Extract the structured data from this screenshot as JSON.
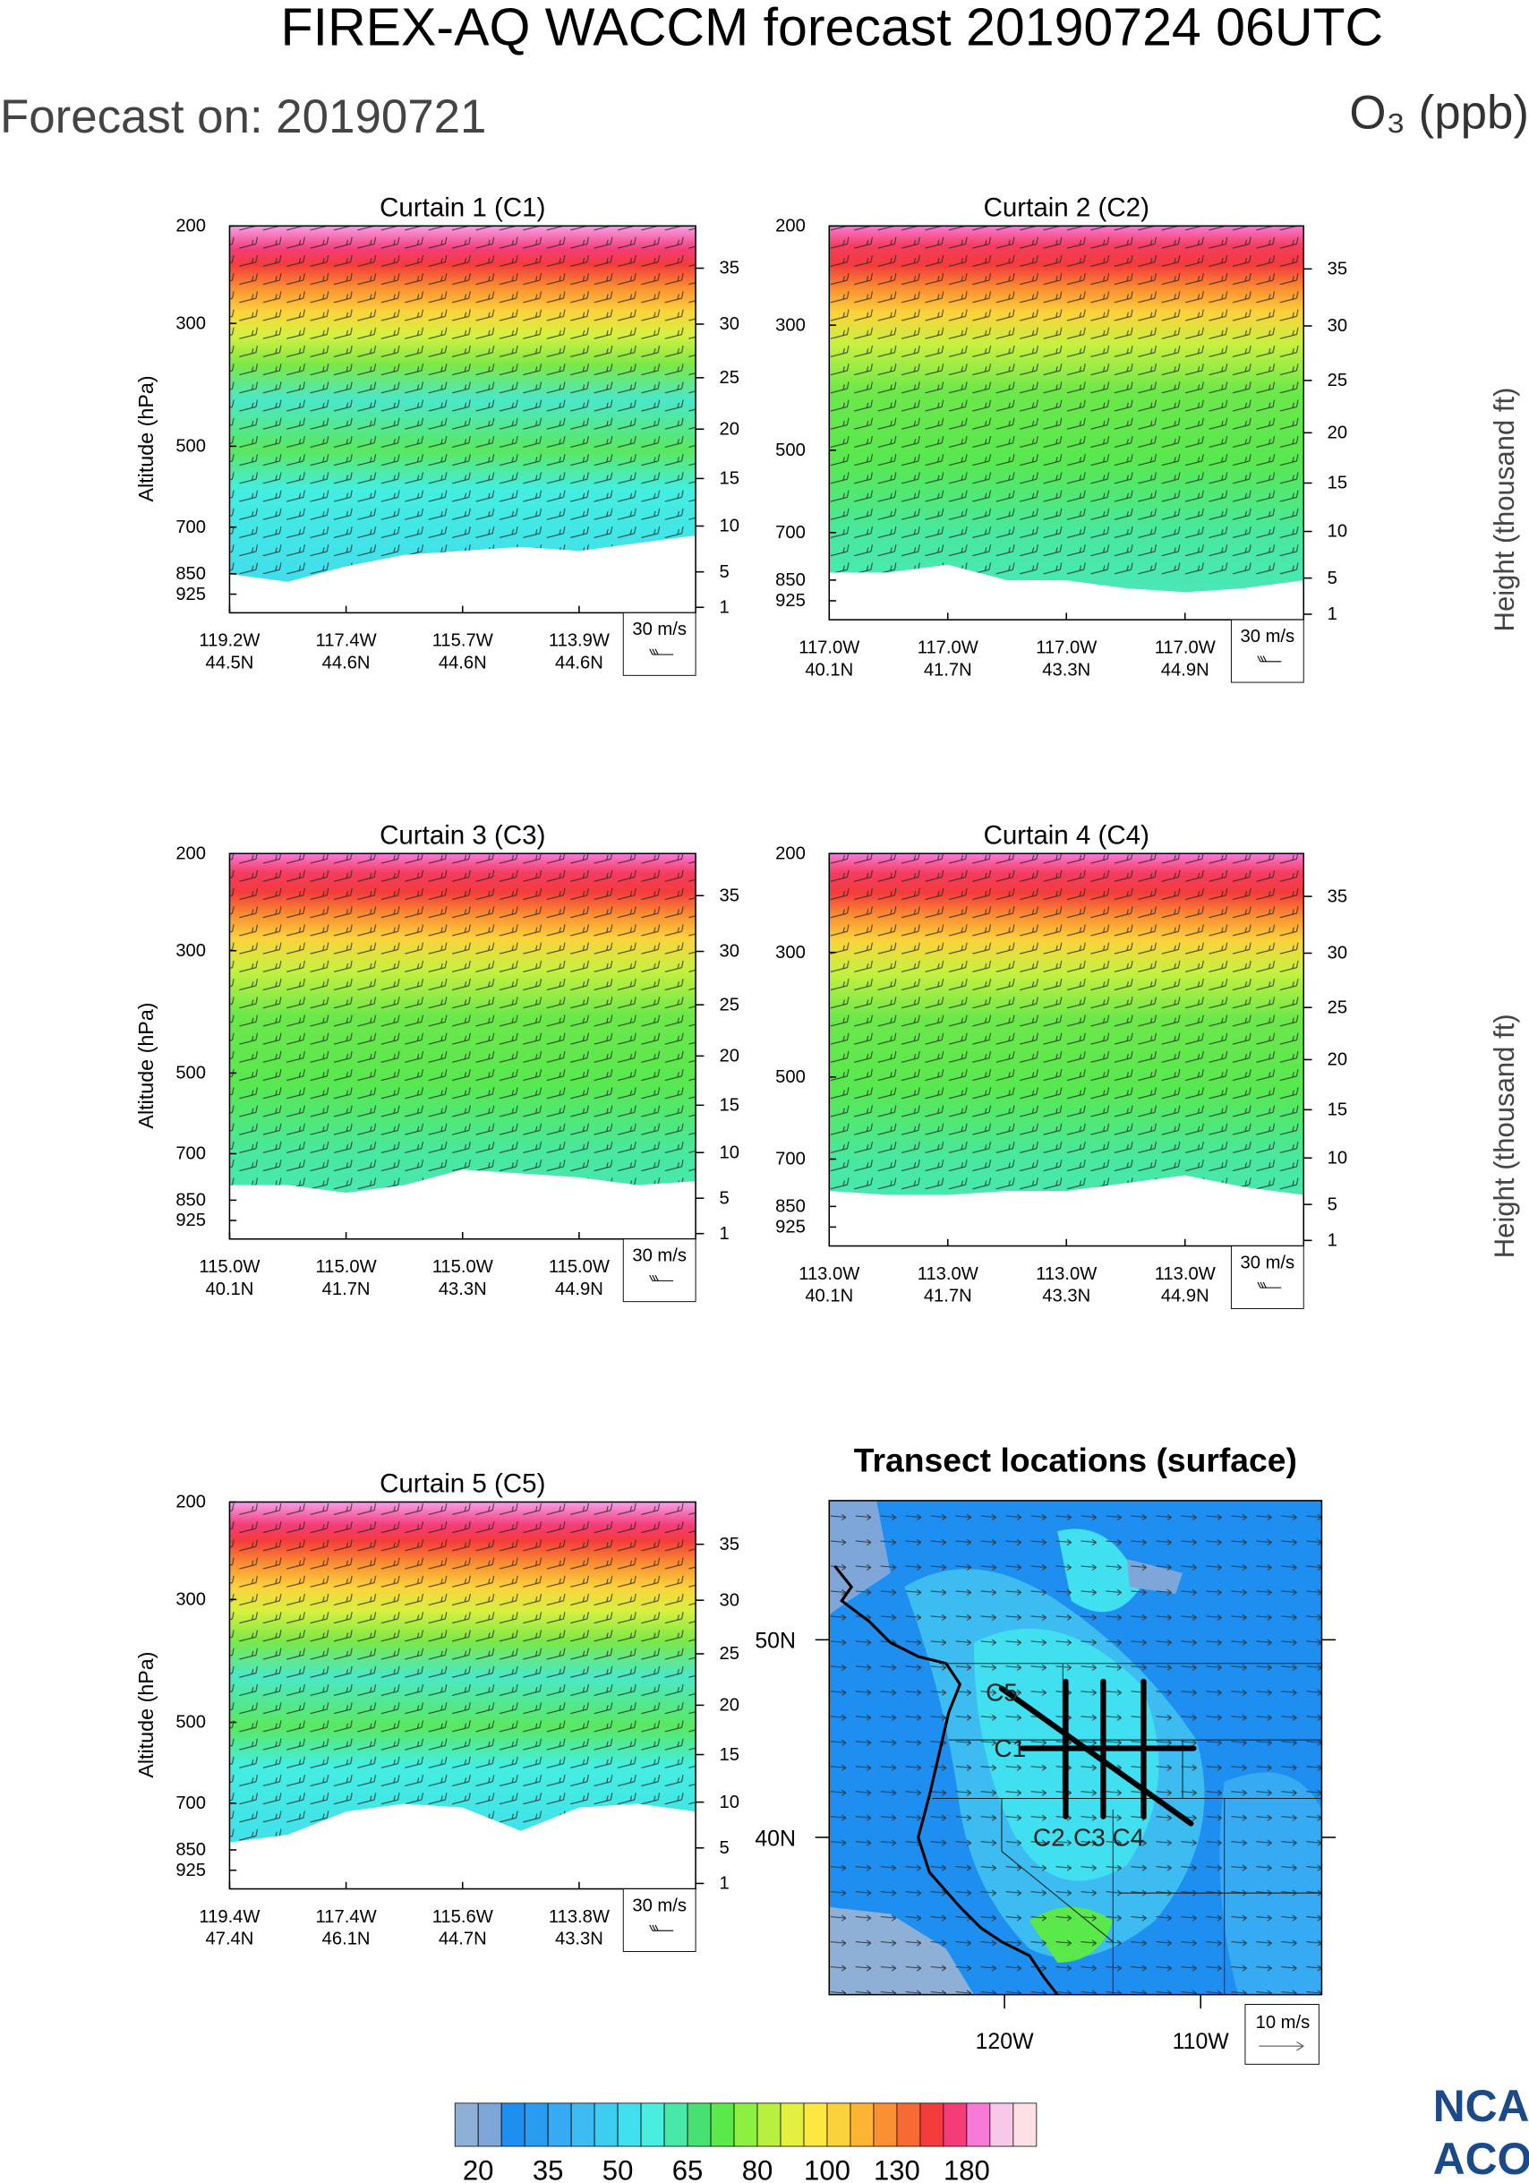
{
  "header": {
    "title": "FIREX-AQ WACCM forecast 20190724 06UTC",
    "forecast_on": "Forecast on: 20190721",
    "variable": "O₃ (ppb)"
  },
  "curtains": [
    {
      "title": "Curtain 1 (C1)",
      "y_label": "Altitude (hPa)",
      "wind_key": "30 m/s",
      "x_ticks": [
        {
          "lon": "119.2W",
          "lat": "44.5N"
        },
        {
          "lon": "117.4W",
          "lat": "44.6N"
        },
        {
          "lon": "115.7W",
          "lat": "44.6N"
        },
        {
          "lon": "113.9W",
          "lat": "44.6N"
        }
      ]
    },
    {
      "title": "Curtain 2 (C2)",
      "y2_label": "Height (thousand ft)",
      "wind_key": "30 m/s",
      "x_ticks": [
        {
          "lon": "117.0W",
          "lat": "40.1N"
        },
        {
          "lon": "117.0W",
          "lat": "41.7N"
        },
        {
          "lon": "117.0W",
          "lat": "43.3N"
        },
        {
          "lon": "117.0W",
          "lat": "44.9N"
        }
      ]
    },
    {
      "title": "Curtain 3 (C3)",
      "y_label": "Altitude (hPa)",
      "wind_key": "30 m/s",
      "x_ticks": [
        {
          "lon": "115.0W",
          "lat": "40.1N"
        },
        {
          "lon": "115.0W",
          "lat": "41.7N"
        },
        {
          "lon": "115.0W",
          "lat": "43.3N"
        },
        {
          "lon": "115.0W",
          "lat": "44.9N"
        }
      ]
    },
    {
      "title": "Curtain 4 (C4)",
      "y2_label": "Height (thousand ft)",
      "wind_key": "30 m/s",
      "x_ticks": [
        {
          "lon": "113.0W",
          "lat": "40.1N"
        },
        {
          "lon": "113.0W",
          "lat": "41.7N"
        },
        {
          "lon": "113.0W",
          "lat": "43.3N"
        },
        {
          "lon": "113.0W",
          "lat": "44.9N"
        }
      ]
    },
    {
      "title": "Curtain 5 (C5)",
      "y_label": "Altitude (hPa)",
      "wind_key": "30 m/s",
      "x_ticks": [
        {
          "lon": "119.4W",
          "lat": "47.4N"
        },
        {
          "lon": "117.4W",
          "lat": "46.1N"
        },
        {
          "lon": "115.6W",
          "lat": "44.7N"
        },
        {
          "lon": "113.8W",
          "lat": "43.3N"
        }
      ]
    }
  ],
  "pressure_ticks": [
    200,
    300,
    500,
    700,
    850,
    925
  ],
  "height_ticks": [
    1,
    5,
    10,
    15,
    20,
    25,
    30,
    35
  ],
  "map": {
    "title": "Transect locations (surface)",
    "lat_ticks": [
      "50N",
      "40N"
    ],
    "lon_ticks": [
      "120W",
      "110W"
    ],
    "transects": [
      "C5",
      "C1",
      "C2",
      "C3",
      "C4"
    ],
    "wind_key": "10 m/s"
  },
  "colorbar": {
    "labels": [
      20,
      35,
      50,
      65,
      80,
      100,
      130,
      180
    ],
    "colors": [
      "#8fb0d6",
      "#7ea6d8",
      "#1e8ff0",
      "#2a9cf0",
      "#36aaf2",
      "#3cbcf0",
      "#3ccdf0",
      "#40e0f0",
      "#4aeee0",
      "#48e8a8",
      "#48e070",
      "#5ae84a",
      "#8cf040",
      "#b8f040",
      "#e4f040",
      "#fce840",
      "#fcd23c",
      "#fcb432",
      "#fa9032",
      "#f86a34",
      "#f43c3c",
      "#f43c78",
      "#f87ad8",
      "#f8c8e8",
      "#fbe0e6"
    ]
  },
  "logo": [
    "NCA",
    "ACO"
  ]
}
